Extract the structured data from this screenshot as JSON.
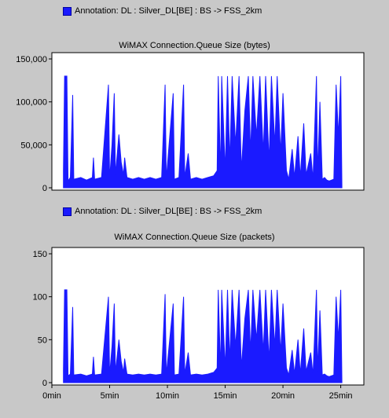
{
  "chart_data": [
    {
      "type": "area",
      "title": "WiMAX Connection.Queue Size (bytes)",
      "legend_label": "Annotation: DL : Silver_DL[BE] : BS -> FSS_2km",
      "series_color": "#1a1aff",
      "ylim": [
        0,
        150000
      ],
      "yticks": [
        "0",
        "50,000",
        "100,000",
        "150,000"
      ],
      "ytick_values": [
        0,
        50000,
        100000,
        150000
      ],
      "xlim": [
        0,
        27
      ],
      "series": [
        {
          "values": [
            [
              1.0,
              20000
            ],
            [
              1.1,
              130000
            ],
            [
              1.3,
              130000
            ],
            [
              1.4,
              8000
            ],
            [
              1.6,
              12000
            ],
            [
              1.8,
              108000
            ],
            [
              1.9,
              10000
            ],
            [
              2.5,
              12000
            ],
            [
              3.0,
              9000
            ],
            [
              3.5,
              12000
            ],
            [
              3.6,
              35000
            ],
            [
              3.7,
              10000
            ],
            [
              4.3,
              12000
            ],
            [
              4.9,
              120000
            ],
            [
              5.0,
              10000
            ],
            [
              5.2,
              50000
            ],
            [
              5.4,
              110000
            ],
            [
              5.5,
              15000
            ],
            [
              5.8,
              62000
            ],
            [
              6.0,
              30000
            ],
            [
              6.2,
              15000
            ],
            [
              6.3,
              35000
            ],
            [
              6.5,
              12000
            ],
            [
              7.0,
              10000
            ],
            [
              7.5,
              12000
            ],
            [
              8.0,
              10000
            ],
            [
              8.5,
              12000
            ],
            [
              9.0,
              10000
            ],
            [
              9.5,
              12000
            ],
            [
              9.8,
              120000
            ],
            [
              9.9,
              10000
            ],
            [
              10.5,
              110000
            ],
            [
              10.6,
              10000
            ],
            [
              11.0,
              12000
            ],
            [
              11.4,
              120000
            ],
            [
              11.5,
              12000
            ],
            [
              11.8,
              40000
            ],
            [
              12.0,
              10000
            ],
            [
              12.5,
              12000
            ],
            [
              13.0,
              10000
            ],
            [
              13.5,
              12000
            ],
            [
              14.0,
              14000
            ],
            [
              14.3,
              20000
            ],
            [
              14.4,
              130000
            ],
            [
              14.6,
              15000
            ],
            [
              14.7,
              130000
            ],
            [
              15.0,
              20000
            ],
            [
              15.2,
              130000
            ],
            [
              15.4,
              30000
            ],
            [
              15.6,
              130000
            ],
            [
              15.9,
              50000
            ],
            [
              16.2,
              130000
            ],
            [
              16.4,
              20000
            ],
            [
              16.7,
              90000
            ],
            [
              17.0,
              130000
            ],
            [
              17.2,
              40000
            ],
            [
              17.4,
              130000
            ],
            [
              17.7,
              60000
            ],
            [
              18.0,
              130000
            ],
            [
              18.3,
              40000
            ],
            [
              18.5,
              130000
            ],
            [
              18.8,
              30000
            ],
            [
              19.0,
              130000
            ],
            [
              19.3,
              50000
            ],
            [
              19.5,
              130000
            ],
            [
              19.8,
              40000
            ],
            [
              20.0,
              110000
            ],
            [
              20.3,
              20000
            ],
            [
              20.5,
              10000
            ],
            [
              20.8,
              45000
            ],
            [
              21.0,
              12000
            ],
            [
              21.3,
              60000
            ],
            [
              21.5,
              12000
            ],
            [
              21.8,
              75000
            ],
            [
              22.0,
              15000
            ],
            [
              22.4,
              40000
            ],
            [
              22.6,
              10000
            ],
            [
              22.9,
              130000
            ],
            [
              23.0,
              15000
            ],
            [
              23.2,
              100000
            ],
            [
              23.4,
              10000
            ],
            [
              23.6,
              12000
            ],
            [
              23.8,
              9000
            ],
            [
              24.0,
              8000
            ],
            [
              24.4,
              10000
            ],
            [
              24.6,
              120000
            ],
            [
              24.8,
              60000
            ],
            [
              25.0,
              130000
            ],
            [
              25.1,
              0
            ]
          ]
        }
      ]
    },
    {
      "type": "area",
      "title": "WiMAX Connection.Queue Size (packets)",
      "legend_label": "Annotation: DL : Silver_DL[BE] : BS -> FSS_2km",
      "series_color": "#1a1aff",
      "ylim": [
        0,
        150
      ],
      "yticks": [
        "0",
        "50",
        "100",
        "150"
      ],
      "ytick_values": [
        0,
        50,
        100,
        150
      ],
      "xlim": [
        0,
        27
      ],
      "xticks": [
        "0min",
        "5min",
        "10min",
        "15min",
        "20min",
        "25min"
      ],
      "xtick_values": [
        0,
        5,
        10,
        15,
        20,
        25
      ],
      "series": [
        {
          "values": [
            [
              1.0,
              15
            ],
            [
              1.1,
              108
            ],
            [
              1.3,
              108
            ],
            [
              1.4,
              8
            ],
            [
              1.6,
              10
            ],
            [
              1.8,
              88
            ],
            [
              1.9,
              9
            ],
            [
              2.5,
              10
            ],
            [
              3.0,
              8
            ],
            [
              3.5,
              10
            ],
            [
              3.6,
              30
            ],
            [
              3.7,
              9
            ],
            [
              4.3,
              10
            ],
            [
              4.9,
              100
            ],
            [
              5.0,
              9
            ],
            [
              5.2,
              42
            ],
            [
              5.4,
              92
            ],
            [
              5.5,
              12
            ],
            [
              5.8,
              50
            ],
            [
              6.0,
              25
            ],
            [
              6.2,
              12
            ],
            [
              6.3,
              28
            ],
            [
              6.5,
              10
            ],
            [
              7.0,
              9
            ],
            [
              7.5,
              10
            ],
            [
              8.0,
              9
            ],
            [
              8.5,
              10
            ],
            [
              9.0,
              9
            ],
            [
              9.5,
              10
            ],
            [
              9.8,
              103
            ],
            [
              9.9,
              9
            ],
            [
              10.5,
              92
            ],
            [
              10.6,
              9
            ],
            [
              11.0,
              10
            ],
            [
              11.4,
              100
            ],
            [
              11.5,
              10
            ],
            [
              11.8,
              35
            ],
            [
              12.0,
              9
            ],
            [
              12.5,
              10
            ],
            [
              13.0,
              9
            ],
            [
              13.5,
              10
            ],
            [
              14.0,
              12
            ],
            [
              14.3,
              17
            ],
            [
              14.4,
              108
            ],
            [
              14.6,
              13
            ],
            [
              14.7,
              108
            ],
            [
              15.0,
              17
            ],
            [
              15.2,
              108
            ],
            [
              15.4,
              25
            ],
            [
              15.6,
              108
            ],
            [
              15.9,
              42
            ],
            [
              16.2,
              108
            ],
            [
              16.4,
              17
            ],
            [
              16.7,
              75
            ],
            [
              17.0,
              108
            ],
            [
              17.2,
              35
            ],
            [
              17.4,
              108
            ],
            [
              17.7,
              50
            ],
            [
              18.0,
              108
            ],
            [
              18.3,
              35
            ],
            [
              18.5,
              108
            ],
            [
              18.8,
              25
            ],
            [
              19.0,
              108
            ],
            [
              19.3,
              42
            ],
            [
              19.5,
              108
            ],
            [
              19.8,
              35
            ],
            [
              20.0,
              92
            ],
            [
              20.3,
              17
            ],
            [
              20.5,
              9
            ],
            [
              20.8,
              38
            ],
            [
              21.0,
              10
            ],
            [
              21.3,
              50
            ],
            [
              21.5,
              10
            ],
            [
              21.8,
              63
            ],
            [
              22.0,
              13
            ],
            [
              22.4,
              35
            ],
            [
              22.6,
              9
            ],
            [
              22.9,
              108
            ],
            [
              23.0,
              13
            ],
            [
              23.2,
              84
            ],
            [
              23.4,
              9
            ],
            [
              23.6,
              10
            ],
            [
              23.8,
              8
            ],
            [
              24.0,
              7
            ],
            [
              24.4,
              9
            ],
            [
              24.6,
              100
            ],
            [
              24.8,
              50
            ],
            [
              25.0,
              108
            ],
            [
              25.1,
              0
            ]
          ]
        }
      ]
    }
  ]
}
